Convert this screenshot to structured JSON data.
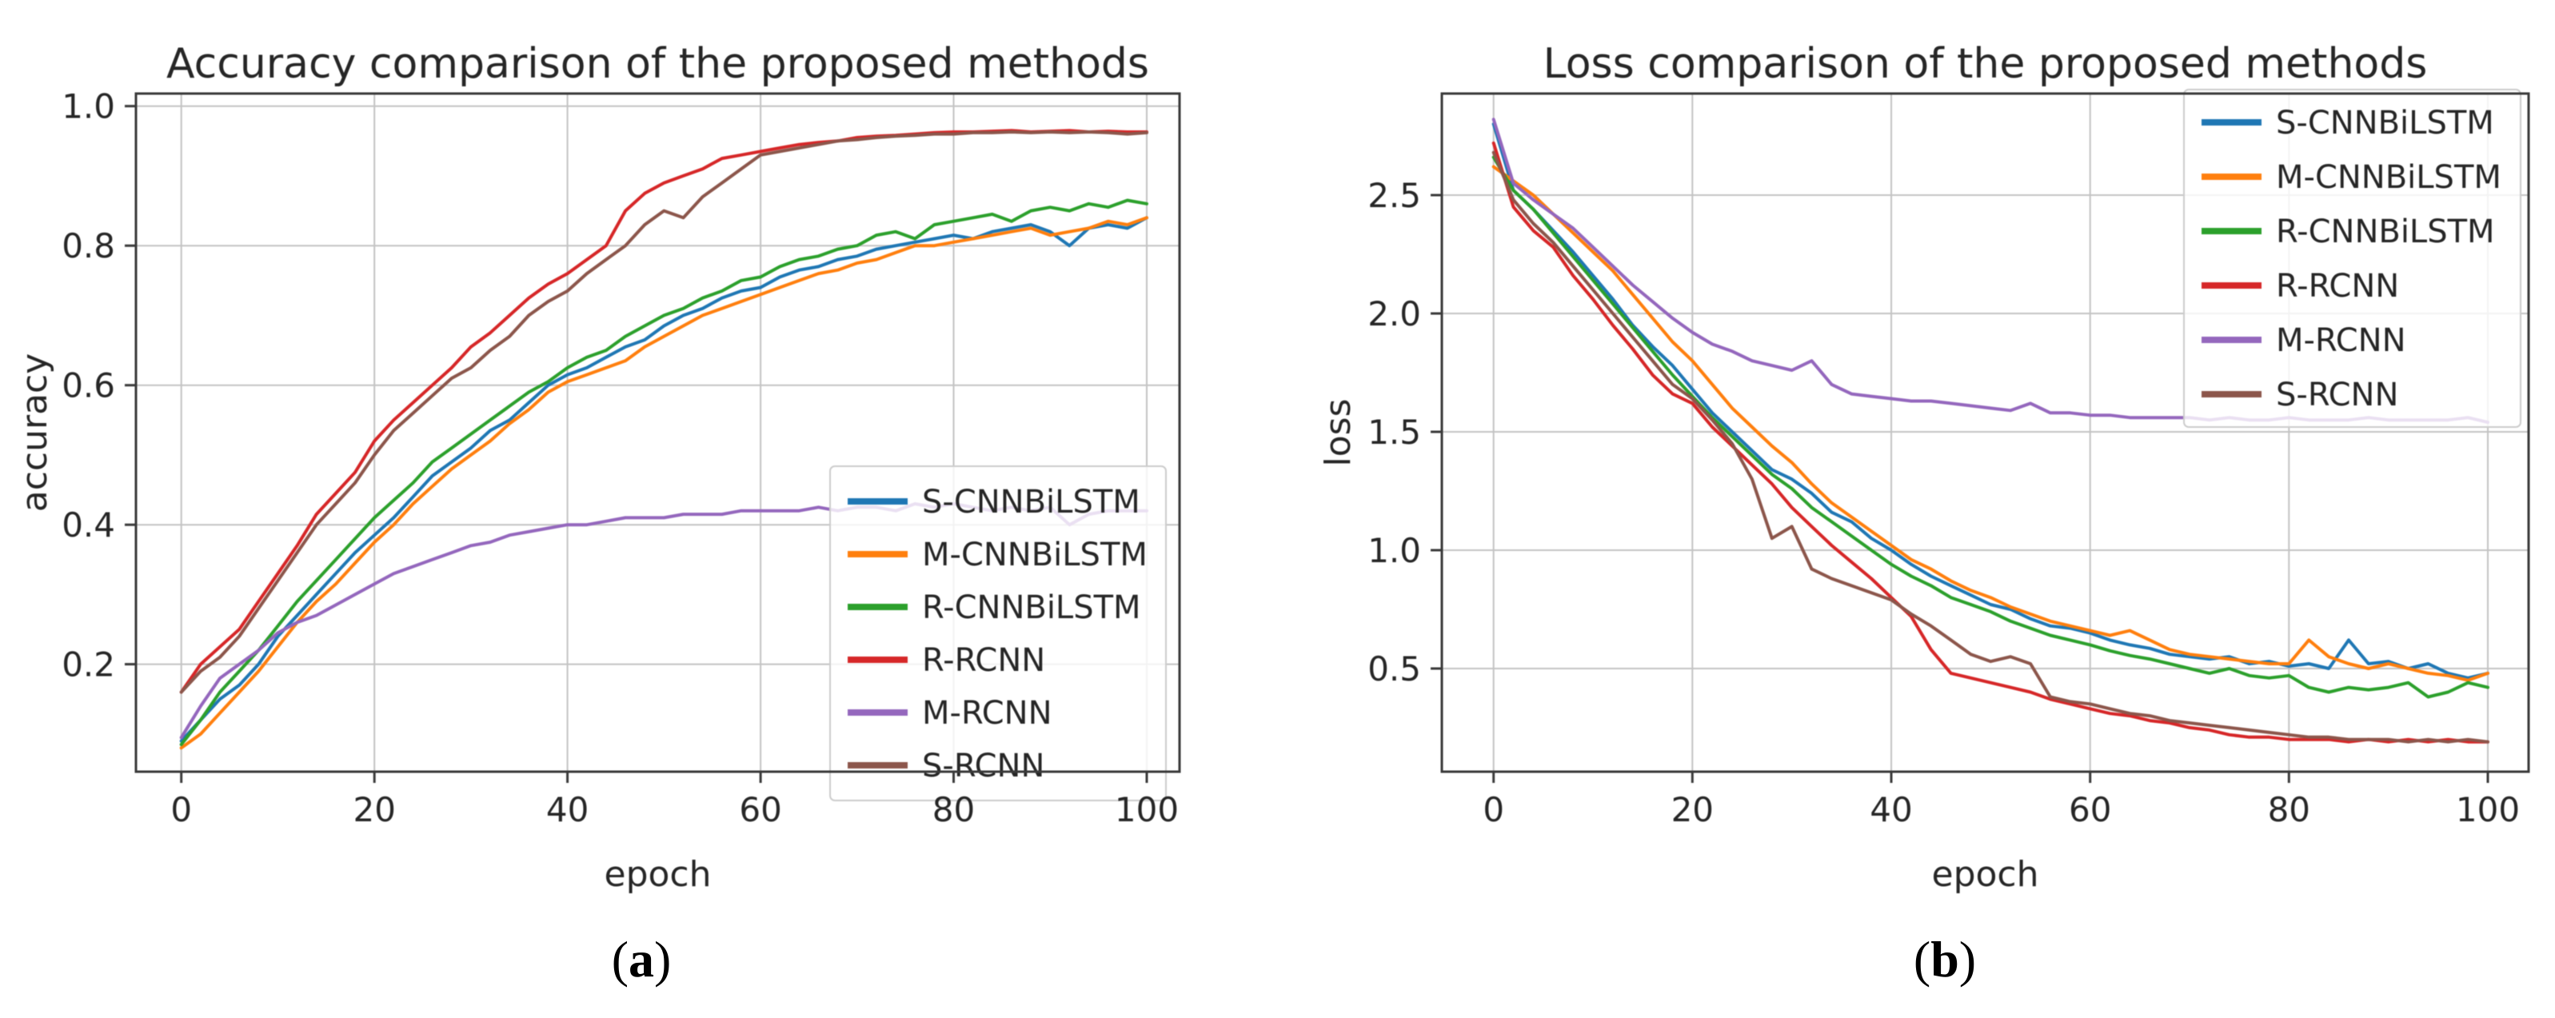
{
  "figure": {
    "captions": [
      {
        "open": "(",
        "letter": "a",
        "close": ")"
      },
      {
        "open": "(",
        "letter": "b",
        "close": ")"
      }
    ]
  },
  "chart_data": [
    {
      "id": "accuracy",
      "type": "line",
      "title": "Accuracy comparison of the proposed methods",
      "xlabel": "epoch",
      "ylabel": "accuracy",
      "grid": true,
      "legend_position": "lower right",
      "xlim": [
        -4.7,
        103.4
      ],
      "ylim": [
        0.046,
        1.018
      ],
      "xticks": [
        0,
        20,
        40,
        60,
        80,
        100
      ],
      "yticks": [
        "0.2",
        "0.4",
        "0.6",
        "0.8",
        "1.0"
      ],
      "x": [
        0,
        2,
        4,
        6,
        8,
        10,
        12,
        14,
        16,
        18,
        20,
        22,
        24,
        26,
        28,
        30,
        32,
        34,
        36,
        38,
        40,
        42,
        44,
        46,
        48,
        50,
        52,
        54,
        56,
        58,
        60,
        62,
        64,
        66,
        68,
        70,
        72,
        74,
        76,
        78,
        80,
        82,
        84,
        86,
        88,
        90,
        92,
        94,
        96,
        98,
        100
      ],
      "series": [
        {
          "name": "S-CNNBiLSTM",
          "color": "#1f77b4",
          "values": [
            0.09,
            0.12,
            0.15,
            0.17,
            0.2,
            0.24,
            0.27,
            0.3,
            0.33,
            0.36,
            0.385,
            0.41,
            0.44,
            0.47,
            0.49,
            0.51,
            0.535,
            0.55,
            0.575,
            0.6,
            0.615,
            0.625,
            0.64,
            0.655,
            0.665,
            0.685,
            0.7,
            0.71,
            0.725,
            0.735,
            0.74,
            0.755,
            0.765,
            0.77,
            0.78,
            0.785,
            0.795,
            0.8,
            0.805,
            0.81,
            0.815,
            0.81,
            0.82,
            0.825,
            0.83,
            0.82,
            0.8,
            0.825,
            0.83,
            0.825,
            0.84
          ]
        },
        {
          "name": "M-CNNBiLSTM",
          "color": "#ff7f0e",
          "values": [
            0.08,
            0.1,
            0.13,
            0.16,
            0.19,
            0.225,
            0.26,
            0.29,
            0.315,
            0.345,
            0.375,
            0.4,
            0.43,
            0.455,
            0.48,
            0.5,
            0.52,
            0.545,
            0.565,
            0.59,
            0.605,
            0.615,
            0.625,
            0.635,
            0.655,
            0.67,
            0.685,
            0.7,
            0.71,
            0.72,
            0.73,
            0.74,
            0.75,
            0.76,
            0.765,
            0.775,
            0.78,
            0.79,
            0.8,
            0.8,
            0.805,
            0.81,
            0.815,
            0.82,
            0.825,
            0.815,
            0.82,
            0.825,
            0.835,
            0.83,
            0.84
          ]
        },
        {
          "name": "R-CNNBiLSTM",
          "color": "#2ca02c",
          "values": [
            0.085,
            0.12,
            0.16,
            0.19,
            0.22,
            0.255,
            0.29,
            0.32,
            0.35,
            0.38,
            0.41,
            0.435,
            0.46,
            0.49,
            0.51,
            0.53,
            0.55,
            0.57,
            0.59,
            0.605,
            0.625,
            0.64,
            0.65,
            0.67,
            0.685,
            0.7,
            0.71,
            0.725,
            0.735,
            0.75,
            0.755,
            0.77,
            0.78,
            0.785,
            0.795,
            0.8,
            0.815,
            0.82,
            0.81,
            0.83,
            0.835,
            0.84,
            0.845,
            0.835,
            0.85,
            0.855,
            0.85,
            0.86,
            0.855,
            0.865,
            0.86
          ]
        },
        {
          "name": "R-RCNN",
          "color": "#d62728",
          "values": [
            0.16,
            0.2,
            0.225,
            0.25,
            0.29,
            0.33,
            0.37,
            0.415,
            0.445,
            0.475,
            0.52,
            0.55,
            0.575,
            0.6,
            0.625,
            0.655,
            0.675,
            0.7,
            0.725,
            0.745,
            0.76,
            0.78,
            0.8,
            0.85,
            0.875,
            0.89,
            0.9,
            0.91,
            0.925,
            0.93,
            0.935,
            0.94,
            0.945,
            0.948,
            0.95,
            0.955,
            0.957,
            0.958,
            0.96,
            0.962,
            0.963,
            0.963,
            0.964,
            0.965,
            0.963,
            0.964,
            0.965,
            0.963,
            0.964,
            0.963,
            0.963
          ]
        },
        {
          "name": "M-RCNN",
          "color": "#9467bd",
          "values": [
            0.095,
            0.14,
            0.18,
            0.2,
            0.22,
            0.245,
            0.26,
            0.27,
            0.285,
            0.3,
            0.315,
            0.33,
            0.34,
            0.35,
            0.36,
            0.37,
            0.375,
            0.385,
            0.39,
            0.395,
            0.4,
            0.4,
            0.405,
            0.41,
            0.41,
            0.41,
            0.415,
            0.415,
            0.415,
            0.42,
            0.42,
            0.42,
            0.42,
            0.425,
            0.42,
            0.425,
            0.425,
            0.42,
            0.43,
            0.425,
            0.43,
            0.425,
            0.42,
            0.425,
            0.42,
            0.425,
            0.4,
            0.415,
            0.42,
            0.42,
            0.42
          ]
        },
        {
          "name": "S-RCNN",
          "color": "#8c564b",
          "values": [
            0.16,
            0.19,
            0.21,
            0.24,
            0.28,
            0.32,
            0.36,
            0.4,
            0.43,
            0.46,
            0.5,
            0.535,
            0.56,
            0.585,
            0.61,
            0.625,
            0.65,
            0.67,
            0.7,
            0.72,
            0.735,
            0.76,
            0.78,
            0.8,
            0.83,
            0.85,
            0.84,
            0.87,
            0.89,
            0.91,
            0.93,
            0.935,
            0.94,
            0.945,
            0.95,
            0.952,
            0.955,
            0.957,
            0.958,
            0.96,
            0.96,
            0.962,
            0.962,
            0.963,
            0.962,
            0.963,
            0.962,
            0.963,
            0.962,
            0.96,
            0.962
          ]
        }
      ]
    },
    {
      "id": "loss",
      "type": "line",
      "title": "Loss comparison of the proposed methods",
      "xlabel": "epoch",
      "ylabel": "loss",
      "grid": true,
      "legend_position": "upper right",
      "xlim": [
        -5.2,
        104.1
      ],
      "ylim": [
        0.064,
        2.929
      ],
      "xticks": [
        0,
        20,
        40,
        60,
        80,
        100
      ],
      "yticks": [
        "0.5",
        "1.0",
        "1.5",
        "2.0",
        "2.5"
      ],
      "x": [
        0,
        2,
        4,
        6,
        8,
        10,
        12,
        14,
        16,
        18,
        20,
        22,
        24,
        26,
        28,
        30,
        32,
        34,
        36,
        38,
        40,
        42,
        44,
        46,
        48,
        50,
        52,
        54,
        56,
        58,
        60,
        62,
        64,
        66,
        68,
        70,
        72,
        74,
        76,
        78,
        80,
        82,
        84,
        86,
        88,
        90,
        92,
        94,
        96,
        98,
        100
      ],
      "series": [
        {
          "name": "S-CNNBiLSTM",
          "color": "#1f77b4",
          "values": [
            2.8,
            2.52,
            2.44,
            2.35,
            2.26,
            2.16,
            2.06,
            1.95,
            1.86,
            1.78,
            1.68,
            1.58,
            1.5,
            1.42,
            1.34,
            1.3,
            1.24,
            1.16,
            1.12,
            1.05,
            1.0,
            0.94,
            0.89,
            0.85,
            0.81,
            0.77,
            0.75,
            0.71,
            0.68,
            0.67,
            0.65,
            0.62,
            0.6,
            0.585,
            0.56,
            0.55,
            0.54,
            0.55,
            0.52,
            0.53,
            0.51,
            0.52,
            0.5,
            0.62,
            0.52,
            0.53,
            0.5,
            0.52,
            0.48,
            0.46,
            0.48
          ]
        },
        {
          "name": "M-CNNBiLSTM",
          "color": "#ff7f0e",
          "values": [
            2.62,
            2.56,
            2.5,
            2.42,
            2.34,
            2.26,
            2.18,
            2.08,
            1.98,
            1.88,
            1.8,
            1.7,
            1.6,
            1.52,
            1.44,
            1.37,
            1.28,
            1.2,
            1.14,
            1.08,
            1.02,
            0.96,
            0.92,
            0.87,
            0.83,
            0.8,
            0.76,
            0.73,
            0.7,
            0.68,
            0.66,
            0.64,
            0.66,
            0.62,
            0.58,
            0.56,
            0.55,
            0.54,
            0.53,
            0.52,
            0.52,
            0.62,
            0.55,
            0.52,
            0.5,
            0.52,
            0.5,
            0.48,
            0.47,
            0.45,
            0.48
          ]
        },
        {
          "name": "R-CNNBiLSTM",
          "color": "#2ca02c",
          "values": [
            2.66,
            2.52,
            2.44,
            2.34,
            2.24,
            2.14,
            2.04,
            1.94,
            1.84,
            1.74,
            1.65,
            1.56,
            1.48,
            1.4,
            1.32,
            1.26,
            1.18,
            1.12,
            1.06,
            1.0,
            0.94,
            0.89,
            0.85,
            0.8,
            0.77,
            0.74,
            0.7,
            0.67,
            0.64,
            0.62,
            0.6,
            0.575,
            0.555,
            0.54,
            0.52,
            0.5,
            0.48,
            0.5,
            0.47,
            0.46,
            0.47,
            0.42,
            0.4,
            0.42,
            0.41,
            0.42,
            0.44,
            0.38,
            0.4,
            0.44,
            0.42
          ]
        },
        {
          "name": "R-RCNN",
          "color": "#d62728",
          "values": [
            2.72,
            2.45,
            2.35,
            2.28,
            2.16,
            2.06,
            1.95,
            1.85,
            1.74,
            1.66,
            1.62,
            1.52,
            1.44,
            1.36,
            1.28,
            1.18,
            1.1,
            1.02,
            0.95,
            0.88,
            0.8,
            0.72,
            0.58,
            0.48,
            0.46,
            0.44,
            0.42,
            0.4,
            0.37,
            0.35,
            0.33,
            0.31,
            0.3,
            0.28,
            0.27,
            0.25,
            0.24,
            0.22,
            0.21,
            0.21,
            0.2,
            0.2,
            0.2,
            0.19,
            0.2,
            0.19,
            0.2,
            0.19,
            0.2,
            0.19,
            0.19
          ]
        },
        {
          "name": "M-RCNN",
          "color": "#9467bd",
          "values": [
            2.82,
            2.55,
            2.48,
            2.42,
            2.36,
            2.28,
            2.2,
            2.12,
            2.05,
            1.98,
            1.92,
            1.87,
            1.84,
            1.8,
            1.78,
            1.76,
            1.8,
            1.7,
            1.66,
            1.65,
            1.64,
            1.63,
            1.63,
            1.62,
            1.61,
            1.6,
            1.59,
            1.62,
            1.58,
            1.58,
            1.57,
            1.57,
            1.56,
            1.56,
            1.56,
            1.56,
            1.55,
            1.56,
            1.55,
            1.55,
            1.56,
            1.55,
            1.55,
            1.55,
            1.56,
            1.55,
            1.55,
            1.55,
            1.55,
            1.56,
            1.54
          ]
        },
        {
          "name": "S-RCNN",
          "color": "#8c564b",
          "values": [
            2.68,
            2.48,
            2.38,
            2.3,
            2.2,
            2.1,
            2.0,
            1.9,
            1.8,
            1.7,
            1.64,
            1.55,
            1.45,
            1.3,
            1.05,
            1.1,
            0.92,
            0.88,
            0.85,
            0.82,
            0.79,
            0.73,
            0.68,
            0.62,
            0.56,
            0.53,
            0.55,
            0.52,
            0.38,
            0.36,
            0.35,
            0.33,
            0.31,
            0.3,
            0.28,
            0.27,
            0.26,
            0.25,
            0.24,
            0.23,
            0.22,
            0.21,
            0.21,
            0.2,
            0.2,
            0.2,
            0.19,
            0.2,
            0.19,
            0.2,
            0.19
          ]
        }
      ]
    }
  ]
}
